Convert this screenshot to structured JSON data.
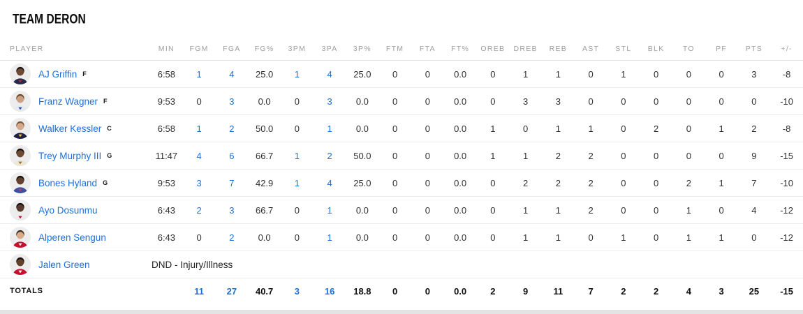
{
  "team": {
    "title": "TEAM DERON"
  },
  "colors": {
    "link_blue": "#1b6fdb",
    "text_dark": "#2f2f2f",
    "header_gray": "#9e9e9e",
    "row_border": "#ececec",
    "strip_gray": "#e4e4e4",
    "title_black": "#0c0c0c",
    "avatar_bg": "#ededed"
  },
  "table": {
    "columns": [
      "PLAYER",
      "MIN",
      "FGM",
      "FGA",
      "FG%",
      "3PM",
      "3PA",
      "3P%",
      "FTM",
      "FTA",
      "FT%",
      "OREB",
      "DREB",
      "REB",
      "AST",
      "STL",
      "BLK",
      "TO",
      "PF",
      "PTS",
      "+/-"
    ],
    "stat_keys": [
      "min",
      "fgm",
      "fga",
      "fg-pct",
      "3pm",
      "3pa",
      "3p-pct",
      "ftm",
      "fta",
      "ft-pct",
      "oreb",
      "dreb",
      "reb",
      "ast",
      "stl",
      "blk",
      "to",
      "pf",
      "pts",
      "plus-minus"
    ],
    "link_stat_indices": [
      1,
      2,
      4,
      5
    ],
    "players": [
      {
        "name": "AJ Griffin",
        "position": "F",
        "dnd": null,
        "stats": [
          "6:58",
          "1",
          "4",
          "25.0",
          "1",
          "4",
          "25.0",
          "0",
          "0",
          "0.0",
          "0",
          "1",
          "1",
          "0",
          "1",
          "0",
          "0",
          "0",
          "3",
          "-8"
        ],
        "avatar": {
          "icon": "player-headshot",
          "skin": "#6e4a35",
          "hair": "#201712",
          "jersey": "#262b4a",
          "trim": "#b8273b"
        }
      },
      {
        "name": "Franz Wagner",
        "position": "F",
        "dnd": null,
        "stats": [
          "9:53",
          "0",
          "3",
          "0.0",
          "0",
          "3",
          "0.0",
          "0",
          "0",
          "0.0",
          "0",
          "3",
          "3",
          "0",
          "0",
          "0",
          "0",
          "0",
          "0",
          "-10"
        ],
        "avatar": {
          "icon": "player-headshot",
          "skin": "#caa184",
          "hair": "#6d4c34",
          "jersey": "#e7e9ee",
          "trim": "#2456a8"
        }
      },
      {
        "name": "Walker Kessler",
        "position": "C",
        "dnd": null,
        "stats": [
          "6:58",
          "1",
          "2",
          "50.0",
          "0",
          "1",
          "0.0",
          "0",
          "0",
          "0.0",
          "1",
          "0",
          "1",
          "1",
          "0",
          "2",
          "0",
          "1",
          "2",
          "-8"
        ],
        "avatar": {
          "icon": "player-headshot",
          "skin": "#d4a98c",
          "hair": "#7b5a3e",
          "jersey": "#1e2140",
          "trim": "#f4c54a"
        }
      },
      {
        "name": "Trey Murphy III",
        "position": "G",
        "dnd": null,
        "stats": [
          "11:47",
          "4",
          "6",
          "66.7",
          "1",
          "2",
          "50.0",
          "0",
          "0",
          "0.0",
          "1",
          "1",
          "2",
          "2",
          "0",
          "0",
          "0",
          "0",
          "9",
          "-15"
        ],
        "avatar": {
          "icon": "player-headshot",
          "skin": "#6e4a35",
          "hair": "#17110d",
          "jersey": "#ece7d8",
          "trim": "#8d7631"
        }
      },
      {
        "name": "Bones Hyland",
        "position": "G",
        "dnd": null,
        "stats": [
          "9:53",
          "3",
          "7",
          "42.9",
          "1",
          "4",
          "25.0",
          "0",
          "0",
          "0.0",
          "0",
          "2",
          "2",
          "2",
          "0",
          "0",
          "2",
          "1",
          "7",
          "-10"
        ],
        "avatar": {
          "icon": "player-headshot",
          "skin": "#63412e",
          "hair": "#1c140e",
          "jersey": "#3f4fa3",
          "trim": "#c33b4a"
        }
      },
      {
        "name": "Ayo Dosunmu",
        "position": "",
        "dnd": null,
        "stats": [
          "6:43",
          "2",
          "3",
          "66.7",
          "0",
          "1",
          "0.0",
          "0",
          "0",
          "0.0",
          "0",
          "1",
          "1",
          "2",
          "0",
          "0",
          "1",
          "0",
          "4",
          "-12"
        ],
        "avatar": {
          "icon": "player-headshot",
          "skin": "#593c2b",
          "hair": "#181210",
          "jersey": "#ebebee",
          "trim": "#c8102e"
        }
      },
      {
        "name": "Alperen Sengun",
        "position": "",
        "dnd": null,
        "stats": [
          "6:43",
          "0",
          "2",
          "0.0",
          "0",
          "1",
          "0.0",
          "0",
          "0",
          "0.0",
          "0",
          "1",
          "1",
          "0",
          "1",
          "0",
          "1",
          "1",
          "0",
          "-12"
        ],
        "avatar": {
          "icon": "player-headshot",
          "skin": "#d9ab89",
          "hair": "#3c2b1e",
          "jersey": "#c8102e",
          "trim": "#ffffff"
        }
      },
      {
        "name": "Jalen Green",
        "position": "",
        "dnd": "DND - Injury/Illness",
        "stats": null,
        "avatar": {
          "icon": "player-headshot",
          "skin": "#63412e",
          "hair": "#17110d",
          "jersey": "#c8102e",
          "trim": "#ffffff"
        }
      }
    ],
    "totals": {
      "label": "TOTALS",
      "stats": [
        "",
        "11",
        "27",
        "40.7",
        "3",
        "16",
        "18.8",
        "0",
        "0",
        "0.0",
        "2",
        "9",
        "11",
        "7",
        "2",
        "2",
        "4",
        "3",
        "25",
        "-15"
      ]
    }
  }
}
